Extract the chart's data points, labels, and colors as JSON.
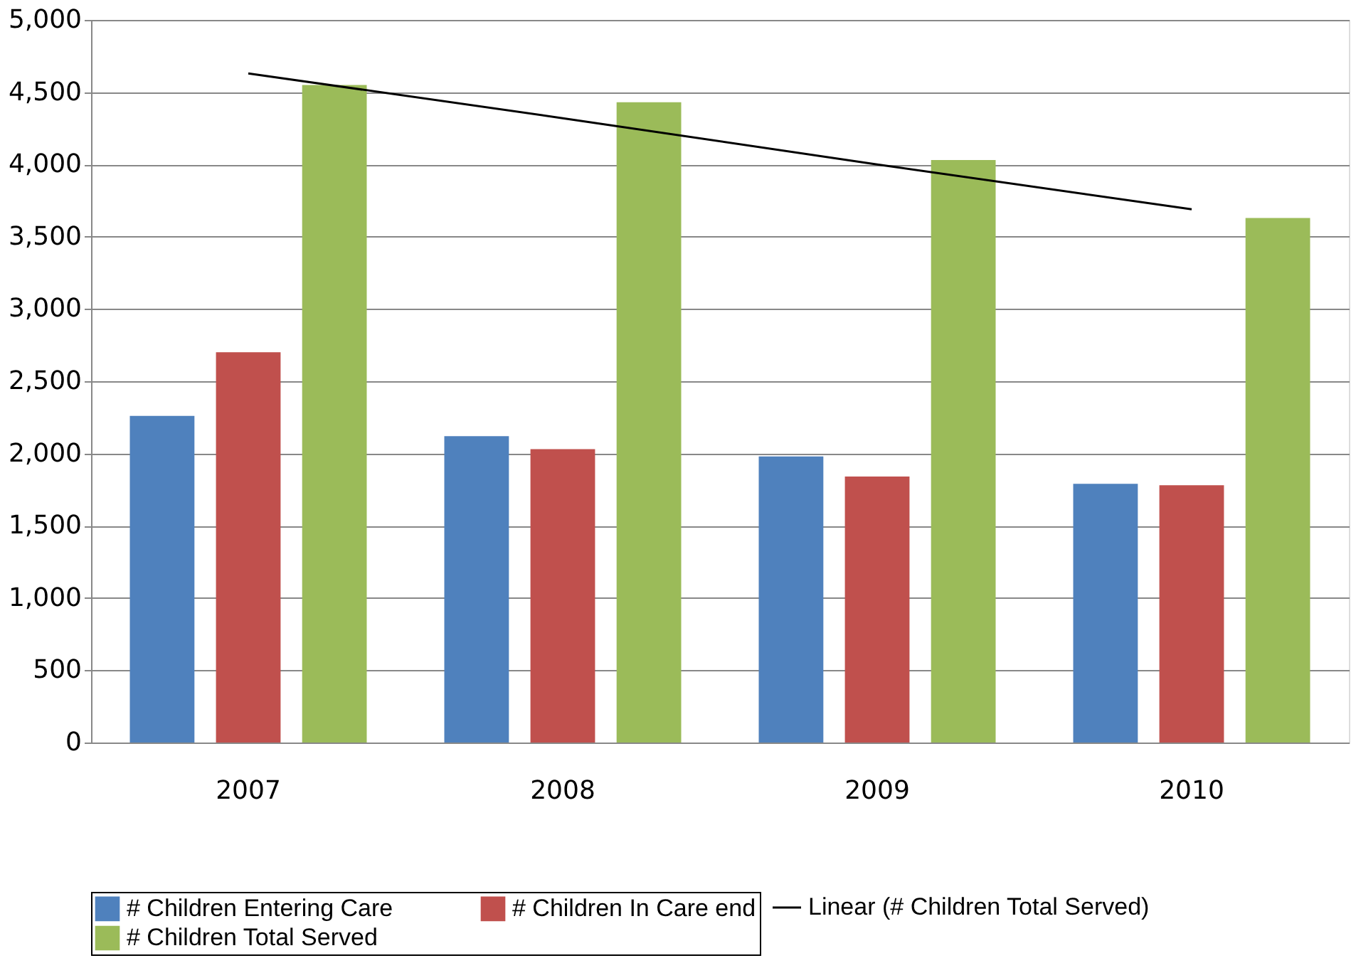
{
  "chart_data": {
    "type": "bar",
    "categories": [
      "2007",
      "2008",
      "2009",
      "2010"
    ],
    "series": [
      {
        "name": "# Children Entering Care",
        "color": "#4f81bd",
        "values": [
          2260,
          2120,
          1980,
          1790
        ]
      },
      {
        "name": "# Children In Care end",
        "color": "#c0504d",
        "values": [
          2700,
          2030,
          1840,
          1780
        ]
      },
      {
        "name": "# Children Total Served",
        "color": "#9bbb59",
        "values": [
          4550,
          4430,
          4030,
          3630
        ]
      },
      {
        "name": "Linear (# Children Total Served)",
        "color": "#000000",
        "type": "line",
        "values": [
          4630,
          4320,
          4000,
          3690
        ]
      }
    ],
    "ylim": [
      0,
      5000
    ],
    "yticks": [
      0,
      500,
      {
        "value": 1000,
        "label": "1,000"
      },
      {
        "value": 1500,
        "label": "1,500"
      },
      {
        "value": 2000,
        "label": "2,000"
      },
      {
        "value": 2500,
        "label": "2,500"
      },
      {
        "value": 3000,
        "label": "3,000"
      },
      {
        "value": 3500,
        "label": "3,500"
      },
      {
        "value": 4000,
        "label": "4,000"
      },
      {
        "value": 4500,
        "label": "4,500"
      },
      {
        "value": 5000,
        "label": "5,000"
      }
    ],
    "grid": "y",
    "legend": "bottom"
  }
}
